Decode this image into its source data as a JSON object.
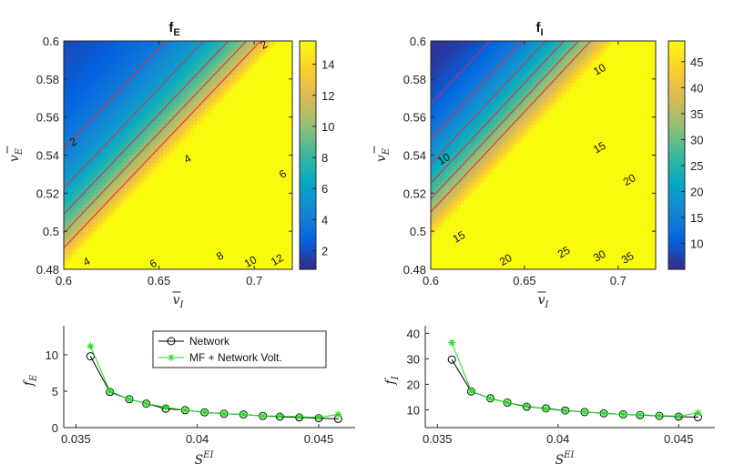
{
  "colors": {
    "parula": [
      "#352a87",
      "#0363e1",
      "#1485d4",
      "#06a7c6",
      "#38b99e",
      "#92bf73",
      "#d9ba56",
      "#fcce2e",
      "#f9fb0e"
    ],
    "contour": "#e8244a",
    "network": "#000000",
    "mf": "#22dd22"
  },
  "chart_data": [
    {
      "id": "fE_heatmap",
      "type": "heatmap",
      "title": "f",
      "title_sub": "E",
      "xlabel": "v",
      "xlabel_sub": "I",
      "ylabel": "v",
      "ylabel_sub": "E",
      "xlim": [
        0.6,
        0.72
      ],
      "ylim": [
        0.48,
        0.6
      ],
      "xticks": [
        "0.6",
        "0.65",
        "0.7"
      ],
      "yticks": [
        "0.48",
        "0.5",
        "0.52",
        "0.54",
        "0.56",
        "0.58",
        "0.6"
      ],
      "clim": [
        0.8,
        15.5
      ],
      "colorbar_ticks": [
        "2",
        "4",
        "6",
        "8",
        "10",
        "12",
        "14"
      ],
      "contour_levels": [
        2,
        4,
        6,
        8,
        10,
        12
      ],
      "contour_labels": [
        "2",
        "2",
        "4",
        "4",
        "6",
        "6",
        "8",
        "10",
        "12"
      ],
      "model": {
        "f0": 2.0,
        "a": 8.0,
        "b": 14.0,
        "p": 1.6
      }
    },
    {
      "id": "fI_heatmap",
      "type": "heatmap",
      "title": "f",
      "title_sub": "I",
      "xlabel": "v",
      "xlabel_sub": "I",
      "ylabel": "v",
      "ylabel_sub": "E",
      "xlim": [
        0.6,
        0.72
      ],
      "ylim": [
        0.48,
        0.6
      ],
      "xticks": [
        "0.6",
        "0.65",
        "0.7"
      ],
      "yticks": [
        "0.48",
        "0.5",
        "0.52",
        "0.54",
        "0.56",
        "0.58",
        "0.6"
      ],
      "clim": [
        5,
        49
      ],
      "colorbar_ticks": [
        "10",
        "15",
        "20",
        "25",
        "30",
        "35",
        "40",
        "45"
      ],
      "contour_levels": [
        10,
        15,
        20,
        25,
        30,
        35
      ],
      "contour_labels": [
        "10",
        "10",
        "15",
        "15",
        "20",
        "20",
        "25",
        "30",
        "35"
      ],
      "model": {
        "f0": 6.0,
        "a": 40.0,
        "b": 12.0,
        "p": 1.5
      }
    },
    {
      "id": "fE_line",
      "type": "line",
      "xlabel": "S",
      "xlabel_sup": "EI",
      "ylabel": "f",
      "ylabel_sub": "E",
      "xlim": [
        0.0345,
        0.0465
      ],
      "ylim": [
        0,
        14
      ],
      "xticks": [
        "0.035",
        "0.04",
        "0.045"
      ],
      "yticks": [
        "0",
        "5",
        "10"
      ],
      "legend": [
        "Network",
        "MF + Network Volt."
      ],
      "x": [
        0.0356,
        0.0364,
        0.0372,
        0.0379,
        0.0387,
        0.0395,
        0.0403,
        0.0411,
        0.0419,
        0.0427,
        0.0434,
        0.0442,
        0.045,
        0.0458
      ],
      "series": [
        {
          "name": "Network",
          "values": [
            9.8,
            4.9,
            3.9,
            3.3,
            2.6,
            2.4,
            2.1,
            1.9,
            1.8,
            1.6,
            1.5,
            1.4,
            1.3,
            1.2
          ]
        },
        {
          "name": "MF + Network Volt.",
          "values": [
            11.2,
            5.0,
            3.9,
            3.3,
            2.8,
            2.4,
            2.1,
            1.9,
            1.8,
            1.6,
            1.6,
            1.5,
            1.4,
            1.8
          ]
        }
      ]
    },
    {
      "id": "fI_line",
      "type": "line",
      "xlabel": "S",
      "xlabel_sup": "EI",
      "ylabel": "f",
      "ylabel_sub": "I",
      "xlim": [
        0.0345,
        0.0465
      ],
      "ylim": [
        3,
        43
      ],
      "xticks": [
        "0.035",
        "0.04",
        "0.045"
      ],
      "yticks": [
        "10",
        "20",
        "30",
        "40"
      ],
      "x": [
        0.0356,
        0.0364,
        0.0372,
        0.0379,
        0.0387,
        0.0395,
        0.0403,
        0.0411,
        0.0419,
        0.0427,
        0.0434,
        0.0442,
        0.045,
        0.0458
      ],
      "series": [
        {
          "name": "Network",
          "values": [
            29.7,
            17.2,
            14.5,
            12.8,
            11.2,
            10.5,
            9.7,
            9.1,
            8.6,
            8.2,
            7.9,
            7.6,
            7.3,
            7.1
          ]
        },
        {
          "name": "MF + Network Volt.",
          "values": [
            36.4,
            17.4,
            14.4,
            12.8,
            11.5,
            10.3,
            9.6,
            9.1,
            8.6,
            8.2,
            8.0,
            7.7,
            7.5,
            8.8
          ]
        }
      ]
    }
  ]
}
